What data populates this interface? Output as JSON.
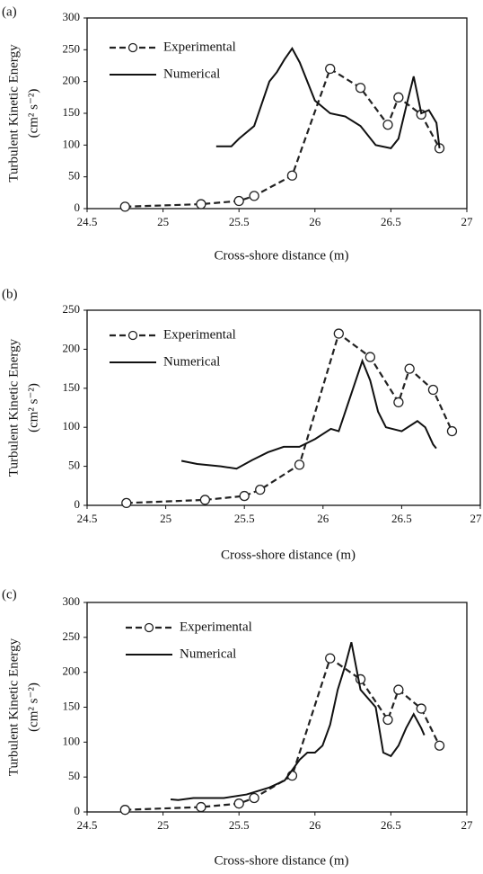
{
  "chart_data": [
    {
      "type": "line",
      "label": "(a)",
      "ylabel": "Turbulent Kinetic Energy",
      "ylabel_units": "(cm² s⁻²)",
      "xlabel": "Cross-shore distance (m)",
      "xlim": [
        24.5,
        27
      ],
      "ylim": [
        0,
        300
      ],
      "xticks": [
        24.5,
        25,
        25.5,
        26,
        26.5,
        27
      ],
      "yticks": [
        0,
        50,
        100,
        150,
        200,
        250,
        300
      ],
      "series": [
        {
          "name": "Experimental",
          "color": "#222222",
          "linestyle": "dashed",
          "marker": "circle",
          "x": [
            24.75,
            25.25,
            25.5,
            25.6,
            25.85,
            26.1,
            26.3,
            26.48,
            26.55,
            26.7,
            26.82
          ],
          "values": [
            3,
            7,
            12,
            20,
            52,
            220,
            190,
            132,
            175,
            148,
            95
          ]
        },
        {
          "name": "Numerical",
          "color": "#111111",
          "linestyle": "solid",
          "marker": "none",
          "x": [
            25.35,
            25.45,
            25.5,
            25.6,
            25.7,
            25.75,
            25.8,
            25.85,
            25.9,
            26.0,
            26.1,
            26.2,
            26.3,
            26.4,
            26.5,
            26.55,
            26.6,
            26.65,
            26.7,
            26.75,
            26.8,
            26.82
          ],
          "values": [
            98,
            98,
            110,
            130,
            200,
            215,
            235,
            252,
            230,
            170,
            150,
            145,
            130,
            100,
            95,
            110,
            160,
            208,
            150,
            155,
            135,
            95
          ]
        }
      ]
    },
    {
      "type": "line",
      "label": "(b)",
      "ylabel": "Turbulent Kinetic Energy",
      "ylabel_units": "(cm² s⁻²)",
      "xlabel": "Cross-shore distance (m)",
      "xlim": [
        24.5,
        27
      ],
      "ylim": [
        0,
        250
      ],
      "xticks": [
        24.5,
        25,
        25.5,
        26,
        26.5,
        27
      ],
      "yticks": [
        0,
        50,
        100,
        150,
        200,
        250
      ],
      "series": [
        {
          "name": "Experimental",
          "color": "#222222",
          "linestyle": "dashed",
          "marker": "circle",
          "x": [
            24.75,
            25.25,
            25.5,
            25.6,
            25.85,
            26.1,
            26.3,
            26.48,
            26.55,
            26.7,
            26.82
          ],
          "values": [
            3,
            7,
            12,
            20,
            52,
            220,
            190,
            132,
            175,
            148,
            95
          ]
        },
        {
          "name": "Numerical",
          "color": "#111111",
          "linestyle": "solid",
          "marker": "none",
          "x": [
            25.1,
            25.2,
            25.35,
            25.45,
            25.55,
            25.65,
            25.75,
            25.85,
            25.95,
            26.05,
            26.1,
            26.15,
            26.2,
            26.25,
            26.3,
            26.35,
            26.4,
            26.5,
            26.6,
            26.65,
            26.7,
            26.72
          ],
          "values": [
            57,
            53,
            50,
            47,
            58,
            68,
            75,
            75,
            85,
            98,
            95,
            125,
            155,
            185,
            160,
            120,
            100,
            95,
            108,
            100,
            78,
            73
          ]
        }
      ]
    },
    {
      "type": "line",
      "label": "(c)",
      "ylabel": "Turbulent Kinetic Energy",
      "ylabel_units": "(cm² s⁻²)",
      "xlabel": "Cross-shore distance (m)",
      "xlim": [
        24.5,
        27
      ],
      "ylim": [
        0,
        300
      ],
      "xticks": [
        24.5,
        25,
        25.5,
        26,
        26.5,
        27
      ],
      "yticks": [
        0,
        50,
        100,
        150,
        200,
        250,
        300
      ],
      "series": [
        {
          "name": "Experimental",
          "color": "#222222",
          "linestyle": "dashed",
          "marker": "circle",
          "x": [
            24.75,
            25.25,
            25.5,
            25.6,
            25.85,
            26.1,
            26.3,
            26.48,
            26.55,
            26.7,
            26.82
          ],
          "values": [
            3,
            7,
            12,
            20,
            52,
            220,
            190,
            132,
            175,
            148,
            95
          ]
        },
        {
          "name": "Numerical",
          "color": "#111111",
          "linestyle": "solid",
          "marker": "none",
          "x": [
            25.05,
            25.1,
            25.2,
            25.4,
            25.55,
            25.7,
            25.8,
            25.9,
            25.95,
            26.0,
            26.05,
            26.1,
            26.15,
            26.2,
            26.24,
            26.3,
            26.4,
            26.45,
            26.5,
            26.55,
            26.6,
            26.65,
            26.7,
            26.72
          ],
          "values": [
            18,
            17,
            20,
            20,
            25,
            35,
            45,
            75,
            85,
            85,
            95,
            125,
            175,
            210,
            243,
            175,
            150,
            85,
            80,
            95,
            120,
            140,
            120,
            110
          ]
        }
      ]
    }
  ]
}
